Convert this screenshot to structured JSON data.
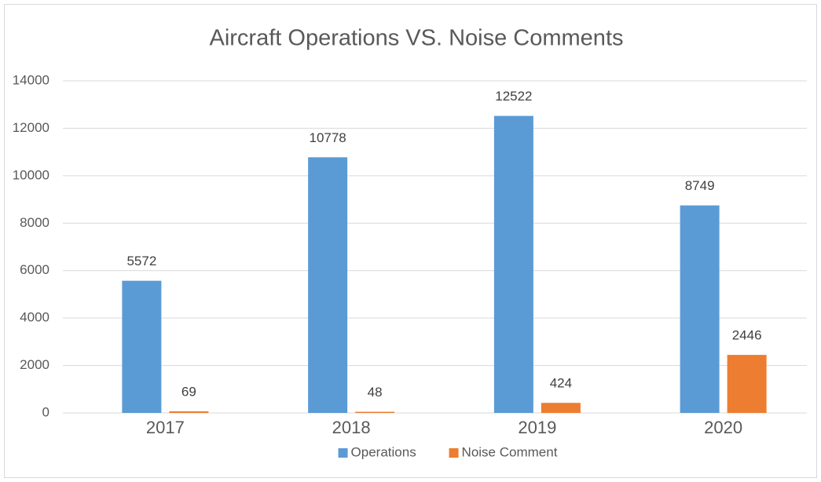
{
  "chart_data": {
    "type": "bar",
    "title": "Aircraft Operations VS. Noise Comments",
    "categories": [
      "2017",
      "2018",
      "2019",
      "2020"
    ],
    "series": [
      {
        "name": "Operations",
        "color": "#5b9bd5",
        "values": [
          5572,
          10778,
          12522,
          8749
        ]
      },
      {
        "name": "Noise Comment",
        "color": "#ed7d31",
        "values": [
          69,
          48,
          424,
          2446
        ]
      }
    ],
    "ylim": [
      0,
      14000
    ],
    "yticks": [
      0,
      2000,
      4000,
      6000,
      8000,
      10000,
      12000,
      14000
    ],
    "grid": true,
    "legend": "bottom"
  }
}
